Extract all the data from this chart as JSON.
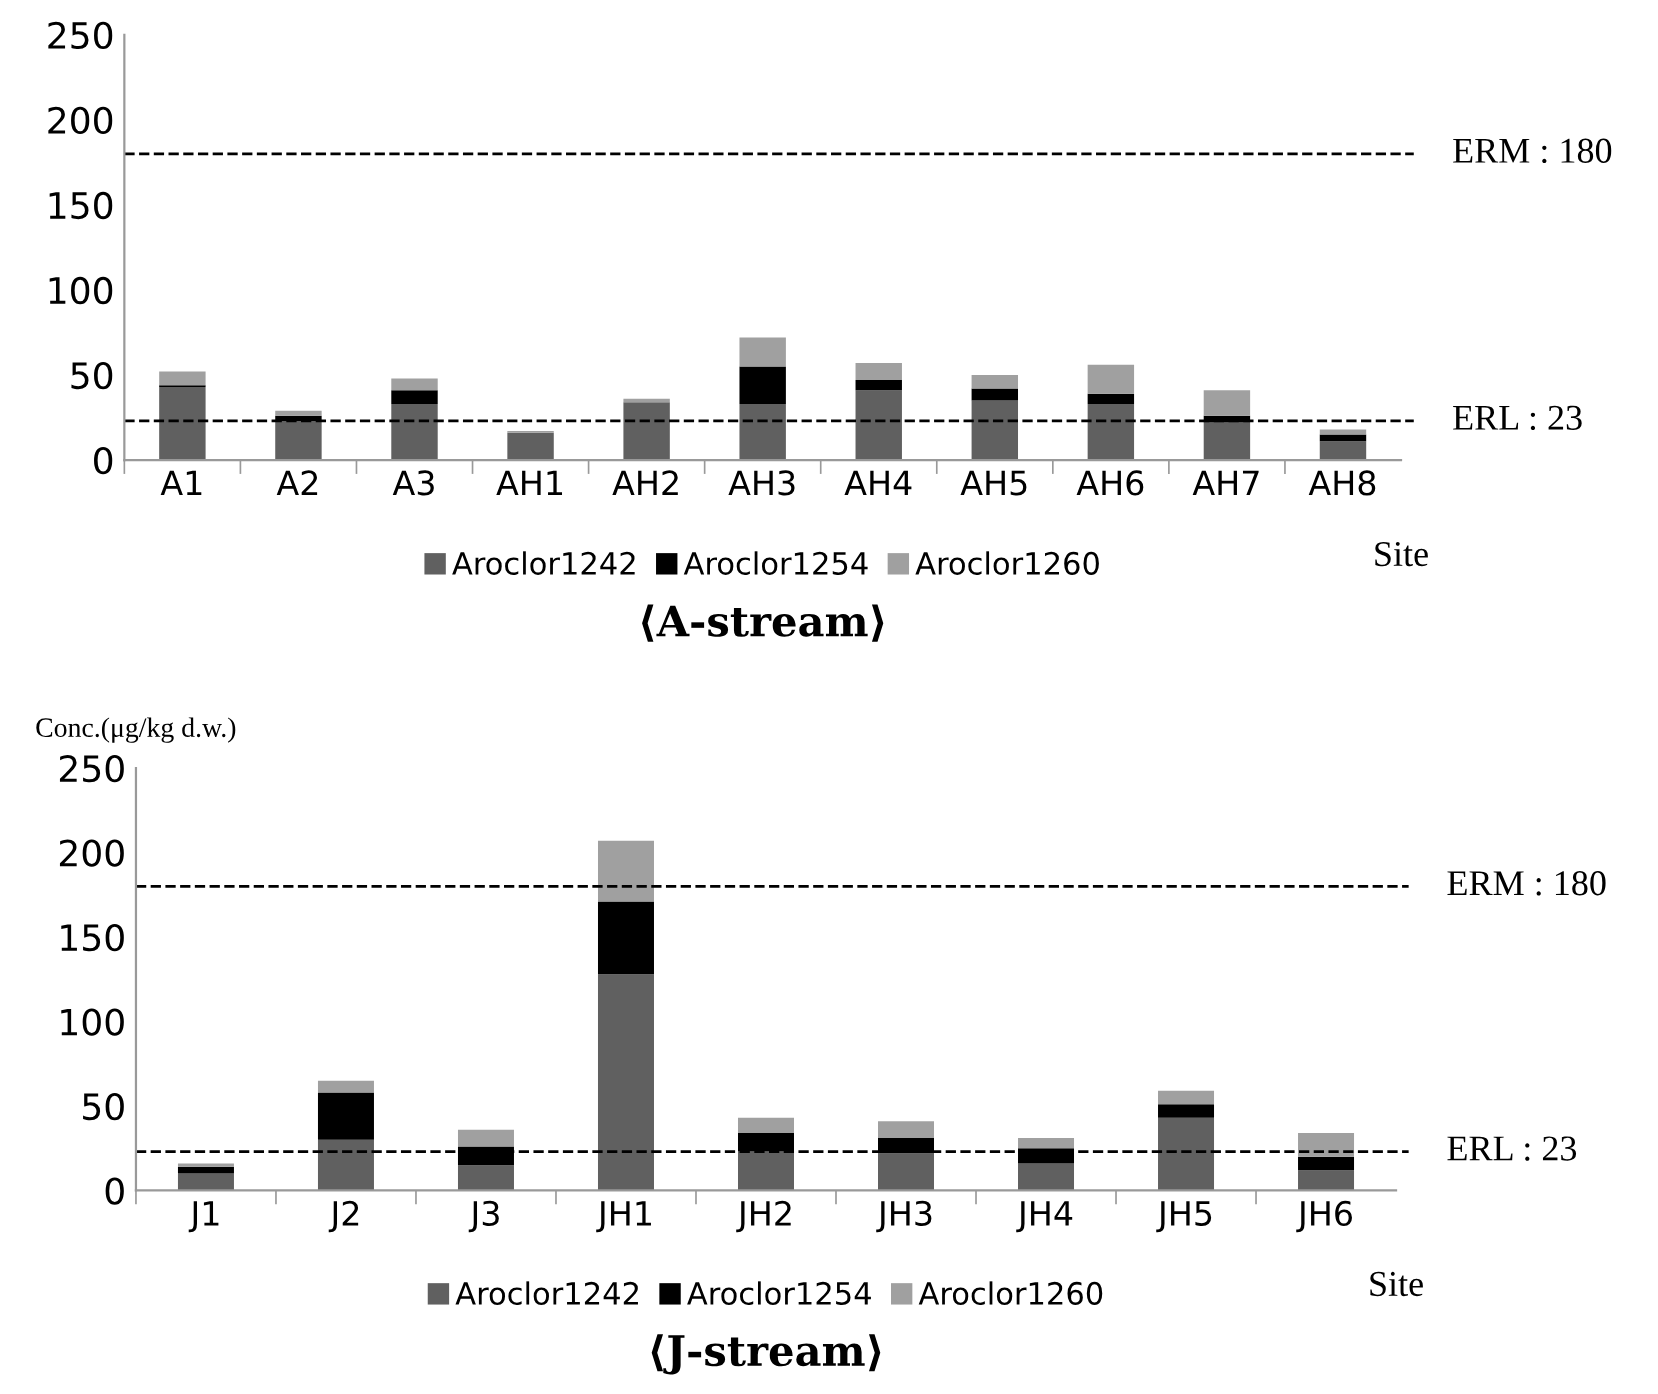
{
  "chart_data": [
    {
      "type": "bar",
      "stacked": true,
      "title": "⟨A-stream⟩",
      "xlabel": "Site",
      "categories": [
        "A1",
        "A2",
        "A3",
        "AH1",
        "AH2",
        "AH3",
        "AH4",
        "AH5",
        "AH6",
        "AH7",
        "AH8"
      ],
      "series": [
        {
          "name": "Aroclor1242",
          "color": "#606060",
          "values": [
            43,
            23,
            33,
            16,
            34,
            33,
            41,
            35,
            33,
            22,
            11
          ]
        },
        {
          "name": "Aroclor1254",
          "color": "#000000",
          "values": [
            1,
            3,
            8,
            0,
            0,
            22,
            6,
            7,
            6,
            4,
            4
          ]
        },
        {
          "name": "Aroclor1260",
          "color": "#a0a0a0",
          "values": [
            8,
            3,
            7,
            1,
            2,
            17,
            10,
            8,
            17,
            15,
            3
          ]
        }
      ],
      "ylim": [
        0,
        250
      ],
      "yticks": [
        0,
        50,
        100,
        150,
        200,
        250
      ],
      "ref_lines": [
        {
          "axis": "y",
          "value": 180,
          "label": "ERM : 180",
          "line_style": "dashed",
          "color": "#000000"
        },
        {
          "axis": "y",
          "value": 23,
          "label": "ERL : 23",
          "line_style": "dashed",
          "color": "#000000"
        }
      ],
      "legend": "bottom",
      "grid": false
    },
    {
      "type": "bar",
      "stacked": true,
      "title": "⟨J-stream⟩",
      "xlabel": "Site",
      "ylabel": "Conc.(μg/kg d.w.)",
      "categories": [
        "J1",
        "J2",
        "J3",
        "JH1",
        "JH2",
        "JH3",
        "JH4",
        "JH5",
        "JH6"
      ],
      "series": [
        {
          "name": "Aroclor1242",
          "color": "#606060",
          "values": [
            10,
            30,
            15,
            128,
            23,
            22,
            16,
            43,
            12
          ]
        },
        {
          "name": "Aroclor1254",
          "color": "#000000",
          "values": [
            4,
            28,
            11,
            43,
            11,
            9,
            9,
            8,
            8
          ]
        },
        {
          "name": "Aroclor1260",
          "color": "#a0a0a0",
          "values": [
            2,
            7,
            10,
            36,
            9,
            10,
            6,
            8,
            14
          ]
        }
      ],
      "ylim": [
        0,
        250
      ],
      "yticks": [
        0,
        50,
        100,
        150,
        200,
        250
      ],
      "ref_lines": [
        {
          "axis": "y",
          "value": 180,
          "label": "ERM : 180",
          "line_style": "dashed",
          "color": "#000000"
        },
        {
          "axis": "y",
          "value": 23,
          "label": "ERL : 23",
          "line_style": "dashed",
          "color": "#000000"
        }
      ],
      "legend": "bottom",
      "grid": false
    }
  ]
}
